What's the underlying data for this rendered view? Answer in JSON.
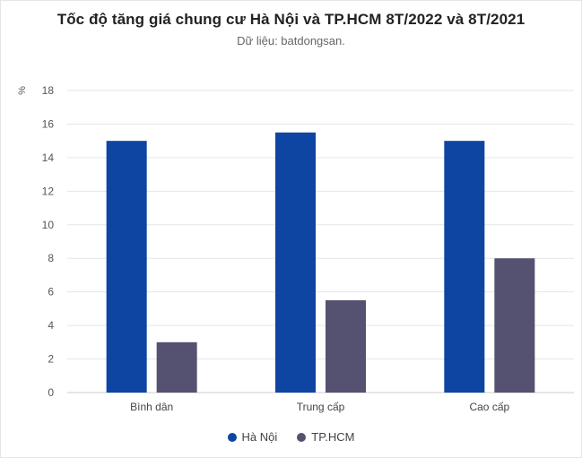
{
  "chart_data": {
    "type": "bar",
    "title": "Tốc độ tăng giá chung cư Hà Nội và TP.HCM 8T/2022 và 8T/2021",
    "subtitle": "Dữ liệu: batdongsan.",
    "ylabel": "%",
    "xlabel": "",
    "ylim": [
      0,
      18
    ],
    "yticks": [
      0,
      2,
      4,
      6,
      8,
      10,
      12,
      14,
      16,
      18
    ],
    "categories": [
      "Bình dân",
      "Trung cấp",
      "Cao cấp"
    ],
    "series": [
      {
        "name": "Hà Nội",
        "values": [
          15,
          15.5,
          15
        ],
        "color": "#0e45a3"
      },
      {
        "name": "TP.HCM",
        "values": [
          3,
          5.5,
          8
        ],
        "color": "#555170"
      }
    ],
    "grid": true,
    "legend_position": "bottom"
  }
}
